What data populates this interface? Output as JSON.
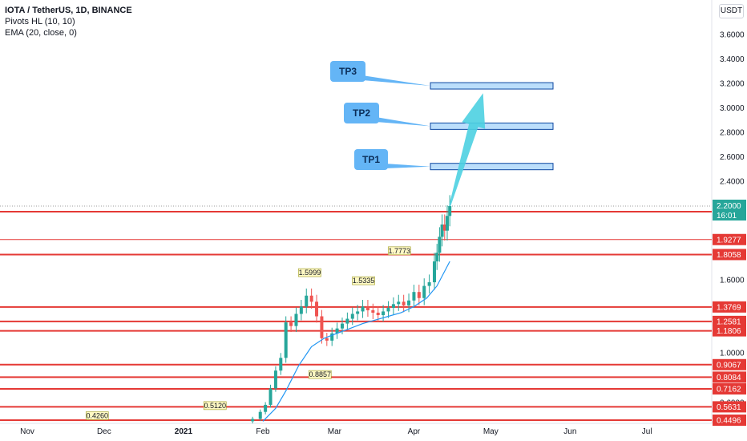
{
  "legend": {
    "title": "IOTA / TetherUS, 1D, BINANCE",
    "indicator1": "Pivots HL (10, 10)",
    "indicator2": "EMA (20, close, 0)"
  },
  "currency": "USDT",
  "chart_data": {
    "type": "candlestick",
    "xlabels": [
      "Nov",
      "Dec",
      "2021",
      "Feb",
      "Mar",
      "Apr",
      "May",
      "Jun",
      "Jul"
    ],
    "y_ticks": [
      "3.6000",
      "3.4000",
      "3.2000",
      "3.0000",
      "2.8000",
      "2.6000",
      "2.4000",
      "1.6000",
      "1.0000",
      "0.6000"
    ],
    "ylim": [
      0.44,
      3.85
    ],
    "current_price": {
      "value": "2.2000",
      "timer": "16:01"
    },
    "support_resistance_lines": [
      {
        "value": 2.1546,
        "label": "2.1546"
      },
      {
        "value": 1.9277,
        "label": "1.9277"
      },
      {
        "value": 1.8058,
        "label": "1.8058"
      },
      {
        "value": 1.3769,
        "label": "1.3769"
      },
      {
        "value": 1.2581,
        "label": "1.2581"
      },
      {
        "value": 1.1806,
        "label": "1.1806"
      },
      {
        "value": 0.9067,
        "label": "0.9067"
      },
      {
        "value": 0.8084,
        "label": "0.8084"
      },
      {
        "value": 0.7162,
        "label": "0.7162"
      },
      {
        "value": 0.5631,
        "label": "0.5631"
      },
      {
        "value": 0.4496,
        "label": "0.4496"
      }
    ],
    "targets": [
      {
        "label": "TP1",
        "value": 2.52
      },
      {
        "label": "TP2",
        "value": 2.85
      },
      {
        "label": "TP3",
        "value": 3.18
      }
    ],
    "pivots": [
      {
        "label": "0.4260",
        "kind": "high",
        "date": "2020-11-28",
        "value": 0.426
      },
      {
        "label": "0.5120",
        "kind": "high",
        "date": "2021-01-13",
        "value": 0.512
      },
      {
        "label": "1.5999",
        "kind": "high",
        "date": "2021-02-19",
        "value": 1.5999
      },
      {
        "label": "0.8857",
        "kind": "low",
        "date": "2021-02-23",
        "value": 0.8857
      },
      {
        "label": "1.5335",
        "kind": "high",
        "date": "2021-03-12",
        "value": 1.5335
      },
      {
        "label": "1.7773",
        "kind": "high",
        "date": "2021-03-26",
        "value": 1.7773
      }
    ],
    "candles_close_path": [
      [
        "2021-01-25",
        0.44
      ],
      [
        "2021-01-28",
        0.46
      ],
      [
        "2021-01-31",
        0.52
      ],
      [
        "2021-02-02",
        0.58
      ],
      [
        "2021-02-04",
        0.72
      ],
      [
        "2021-02-06",
        0.86
      ],
      [
        "2021-02-08",
        0.96
      ],
      [
        "2021-02-10",
        1.25
      ],
      [
        "2021-02-12",
        1.22
      ],
      [
        "2021-02-14",
        1.32
      ],
      [
        "2021-02-16",
        1.38
      ],
      [
        "2021-02-18",
        1.47
      ],
      [
        "2021-02-20",
        1.42
      ],
      [
        "2021-02-22",
        1.3
      ],
      [
        "2021-02-24",
        1.12
      ],
      [
        "2021-02-26",
        1.1
      ],
      [
        "2021-02-28",
        1.16
      ],
      [
        "2021-03-02",
        1.2
      ],
      [
        "2021-03-04",
        1.24
      ],
      [
        "2021-03-06",
        1.28
      ],
      [
        "2021-03-08",
        1.32
      ],
      [
        "2021-03-10",
        1.34
      ],
      [
        "2021-03-12",
        1.38
      ],
      [
        "2021-03-14",
        1.35
      ],
      [
        "2021-03-16",
        1.33
      ],
      [
        "2021-03-18",
        1.31
      ],
      [
        "2021-03-20",
        1.34
      ],
      [
        "2021-03-22",
        1.37
      ],
      [
        "2021-03-24",
        1.4
      ],
      [
        "2021-03-26",
        1.42
      ],
      [
        "2021-03-28",
        1.39
      ],
      [
        "2021-03-30",
        1.43
      ],
      [
        "2021-04-01",
        1.5
      ],
      [
        "2021-04-03",
        1.45
      ],
      [
        "2021-04-05",
        1.55
      ],
      [
        "2021-04-07",
        1.58
      ],
      [
        "2021-04-09",
        1.75
      ],
      [
        "2021-04-10",
        1.82
      ],
      [
        "2021-04-11",
        1.95
      ],
      [
        "2021-04-12",
        2.05
      ],
      [
        "2021-04-13",
        2.0
      ],
      [
        "2021-04-14",
        2.12
      ],
      [
        "2021-04-15",
        2.2
      ]
    ],
    "ema": [
      [
        "2021-02-01",
        0.44
      ],
      [
        "2021-02-06",
        0.55
      ],
      [
        "2021-02-10",
        0.7
      ],
      [
        "2021-02-15",
        0.9
      ],
      [
        "2021-02-20",
        1.05
      ],
      [
        "2021-02-25",
        1.12
      ],
      [
        "2021-03-02",
        1.16
      ],
      [
        "2021-03-07",
        1.2
      ],
      [
        "2021-03-12",
        1.24
      ],
      [
        "2021-03-17",
        1.27
      ],
      [
        "2021-03-22",
        1.3
      ],
      [
        "2021-03-27",
        1.33
      ],
      [
        "2021-04-01",
        1.38
      ],
      [
        "2021-04-06",
        1.45
      ],
      [
        "2021-04-10",
        1.55
      ],
      [
        "2021-04-15",
        1.75
      ]
    ],
    "arrow": {
      "from": [
        "2021-04-15",
        2.2
      ],
      "to": [
        "2021-04-28",
        3.12
      ]
    },
    "colors": {
      "up": "#26a69a",
      "down": "#ef5350",
      "line": "#e53935",
      "ema": "#2196f3",
      "target_fill": "#bbdefb",
      "target_stroke": "#0d47a1",
      "callout": "#64b5f6",
      "arrow": "#4dd0e1",
      "badge": "#e53935",
      "current_badge": "#26a69a"
    }
  }
}
